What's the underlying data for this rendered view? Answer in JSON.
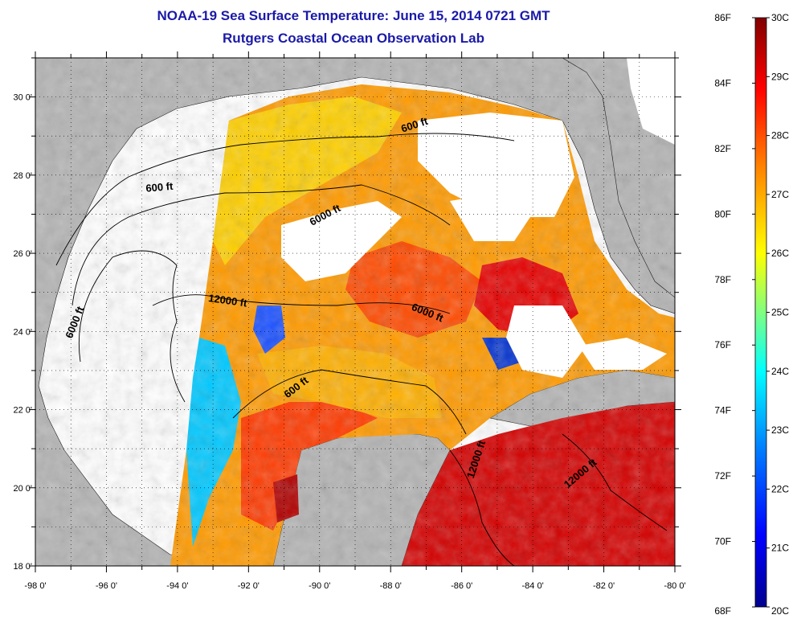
{
  "header": {
    "title": "NOAA-19 Sea Surface Temperature:  June 15, 2014 0721 GMT",
    "subtitle": "Rutgers Coastal Ocean Observation Lab"
  },
  "map": {
    "lon_range": [
      -98,
      -80
    ],
    "lat_range": [
      18,
      31
    ],
    "lon_ticks": [
      "-98 0'",
      "-96 0'",
      "-94 0'",
      "-92 0'",
      "-90 0'",
      "-88 0'",
      "-86 0'",
      "-84 0'",
      "-82 0'",
      "-80 0'"
    ],
    "lon_values": [
      -98,
      -96,
      -94,
      -92,
      -90,
      -88,
      -86,
      -84,
      -82,
      -80
    ],
    "lat_ticks": [
      "18 0'",
      "20 0'",
      "22 0'",
      "24 0'",
      "26 0'",
      "28 0'",
      "30 0'"
    ],
    "lat_values": [
      18,
      20,
      22,
      24,
      26,
      28,
      30
    ],
    "grid": "dotted",
    "land_color": "#b4b4b4",
    "cloud_color": "#ffffff",
    "contour_labels": [
      {
        "text": "600 ft",
        "lon": -87.3,
        "lat": 29.2,
        "rot": -18
      },
      {
        "text": "600 ft",
        "lon": -94.5,
        "lat": 27.6,
        "rot": -5
      },
      {
        "text": "6000 ft",
        "lon": -89.8,
        "lat": 26.9,
        "rot": -28
      },
      {
        "text": "6000 ft",
        "lon": -96.8,
        "lat": 24.2,
        "rot": -68
      },
      {
        "text": "12000 ft",
        "lon": -92.6,
        "lat": 24.7,
        "rot": 8
      },
      {
        "text": "6000 ft",
        "lon": -87.0,
        "lat": 24.4,
        "rot": 22
      },
      {
        "text": "600 ft",
        "lon": -90.6,
        "lat": 22.5,
        "rot": -38
      },
      {
        "text": "12000 ft",
        "lon": -85.5,
        "lat": 20.7,
        "rot": -72
      },
      {
        "text": "12000 ft",
        "lon": -82.6,
        "lat": 20.3,
        "rot": -40
      }
    ]
  },
  "colorbar": {
    "fahrenheit_labels": [
      "86F",
      "84F",
      "82F",
      "80F",
      "78F",
      "76F",
      "74F",
      "72F",
      "70F",
      "68F"
    ],
    "celsius_labels": [
      "30C",
      "29C",
      "28C",
      "27C",
      "26C",
      "25C",
      "24C",
      "23C",
      "22C",
      "21C",
      "20C"
    ],
    "temp_range_c": [
      20,
      30
    ],
    "colors": [
      "#00008f",
      "#0000ff",
      "#0080ff",
      "#00ffff",
      "#80ff80",
      "#ffff00",
      "#ff8000",
      "#ff0000",
      "#800000"
    ]
  }
}
